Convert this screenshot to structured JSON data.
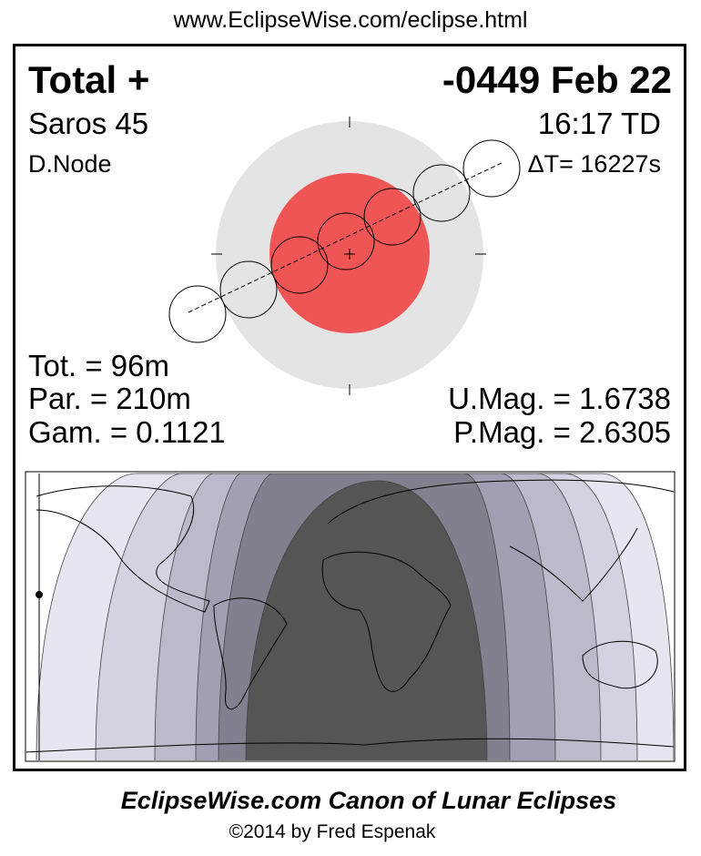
{
  "url": "www.EclipseWise.com/eclipse.html",
  "header": {
    "type": "Total  +",
    "date": "-0449 Feb 22",
    "saros": "Saros  45",
    "time": "16:17 TD",
    "node": "D.Node",
    "delta_t": "ΔT=  16227s"
  },
  "stats": {
    "tot": "Tot. =  96m",
    "par": "Par. = 210m",
    "gam": "Gam. = 0.1121",
    "umag": "U.Mag. = 1.6738",
    "pmag": "P.Mag. = 2.6305"
  },
  "colors": {
    "penumbra": "#e4e4e4",
    "umbra": "#f05555",
    "night": "#555555",
    "bands": [
      "#e6e6f0",
      "#d2d2e0",
      "#babacb",
      "#a0a0b2",
      "#80808f"
    ]
  },
  "footer": {
    "title": "EclipseWise.com Canon of Lunar Eclipses",
    "copyright": "©2014 by Fred Espenak"
  }
}
